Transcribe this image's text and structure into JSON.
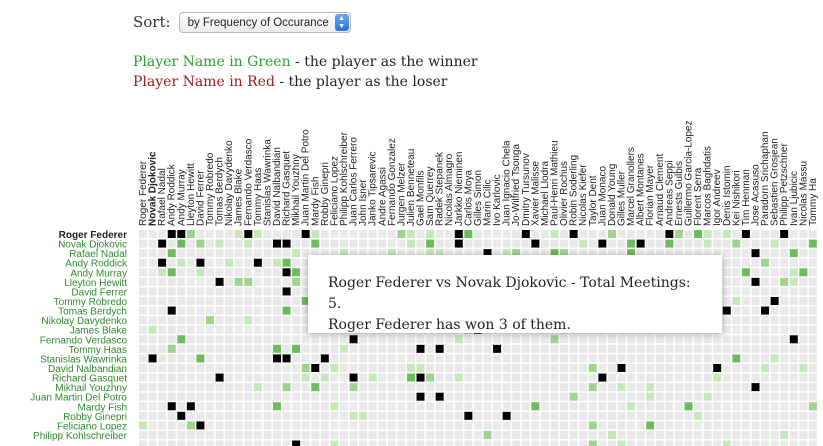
{
  "sort": {
    "label": "Sort:",
    "selected": "by Frequency of Occurance"
  },
  "legend": {
    "green_name": "Player Name in Green",
    "green_desc": " - the player as the winner",
    "red_name": "Player Name in Red",
    "red_desc": " - the player as the loser"
  },
  "column_players": [
    "Roger Federer",
    "Novak Djokovic",
    "Rafael Nadal",
    "Andy Roddick",
    "Andy Murray",
    "Lleyton Hewitt",
    "David Ferrer",
    "Tommy Robredo",
    "Tomas Berdych",
    "Nikolay Davydenko",
    "James Blake",
    "Fernando Verdasco",
    "Tommy Haas",
    "Stanislas Wawrinka",
    "David Nalbandian",
    "Richard Gasquet",
    "Mikhail Youzhny",
    "Juan Martin Del Potro",
    "Mardy Fish",
    "Robby Ginepri",
    "Feliciano Lopez",
    "Philipp Kohlschreiber",
    "Juan Carlos Ferrero",
    "John Isner",
    "Janko Tipsarevic",
    "Andre Agassi",
    "Fernando Gonzalez",
    "Jurgen Melzer",
    "Julien Benneteau",
    "Gael Monfils",
    "Sam Querrey",
    "Radek Stepanek",
    "Nicolas Almagro",
    "Jarkko Nieminen",
    "Carlos Moya",
    "Gilles Simon",
    "Marin Cilic",
    "Ivo Karlovic",
    "Juan Ignacio Chela",
    "Jo-Wilfried Tsonga",
    "Dmitry Tursunov",
    "Xavier Malisse",
    "Michael Llodra",
    "Paul-Henri Mathieu",
    "Olivier Rochus",
    "Robin Soderling",
    "Nicolas Kiefer",
    "Taylor Dent",
    "Juan Monaco",
    "Donald Young",
    "Gilles Muller",
    "Marcel Granollers",
    "Albert Montanes",
    "Florian Mayer",
    "Arnaud Clement",
    "Andreas Seppi",
    "Ernests Gulbis",
    "Guillermo Garcia-Lopez",
    "Florent Serra",
    "Marcos Baghdatis",
    "Igor Andreev",
    "Denis Istomin",
    "Kei Nishikori",
    "Tim Henman",
    "Jose Acasuso",
    "Paradorn Srichaphan",
    "Sebastien Grosjean",
    "Philipp Petzschner",
    "Ivan Ljubicic",
    "Nicolas Massu",
    "Tommy Ha"
  ],
  "row_players": [
    "Roger Federer",
    "Novak Djokovic",
    "Rafael Nadal",
    "Andy Roddick",
    "Andy Murray",
    "Lleyton Hewitt",
    "David Ferrer",
    "Tommy Robredo",
    "Tomas Berdych",
    "Nikolay Davydenko",
    "James Blake",
    "Fernando Verdasco",
    "Tommy Haas",
    "Stanislas Wawrinka",
    "David Nalbandian",
    "Richard Gasquet",
    "Mikhail Youzhny",
    "Juan Martin Del Potro",
    "Mardy Fish",
    "Robby Ginepri",
    "Feliciano Lopez",
    "Philipp Kohlschreiber"
  ],
  "highlighted_row": 0,
  "highlighted_col": 1,
  "tooltip": {
    "line1": "Roger Federer vs Novak Djokovic - Total Meetings: 5.",
    "line2": "Roger Federer has won 3 of them."
  },
  "colors": {
    "empty": "#e9e9e9",
    "light": "#c7e6bd",
    "medium": "#9fd28f",
    "dark": "#6dbb5d",
    "row_label": "#2e8b2e",
    "highlight_label": "#222222"
  }
}
